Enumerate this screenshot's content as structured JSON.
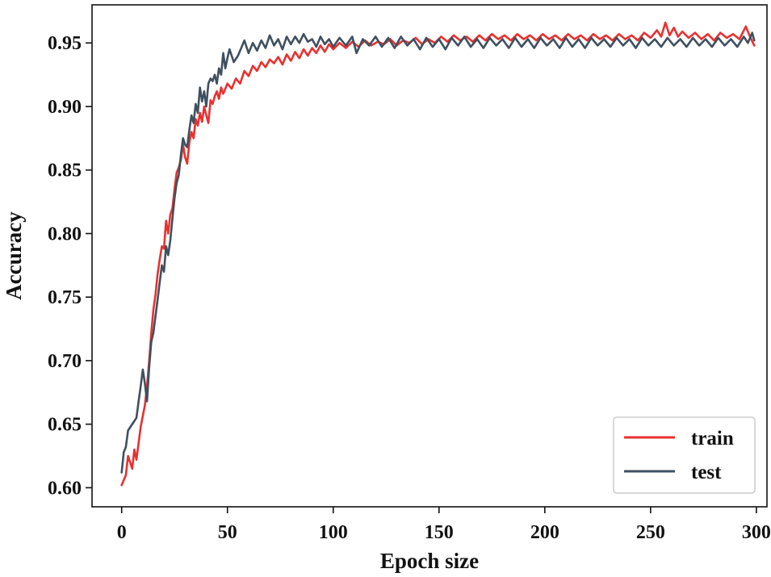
{
  "chart_data": {
    "type": "line",
    "title": "",
    "xlabel": "Epoch size",
    "ylabel": "Accuracy",
    "xlim": [
      -14,
      305
    ],
    "ylim": [
      0.585,
      0.98
    ],
    "xticks": [
      0,
      50,
      100,
      150,
      200,
      250,
      300
    ],
    "yticks": [
      0.6,
      0.65,
      0.7,
      0.75,
      0.8,
      0.85,
      0.9,
      0.95
    ],
    "grid": false,
    "legend_position": "bottom-right",
    "series": [
      {
        "name": "train",
        "color": "#e8312f",
        "points": [
          [
            0,
            0.602
          ],
          [
            2,
            0.61
          ],
          [
            3,
            0.625
          ],
          [
            5,
            0.615
          ],
          [
            6,
            0.63
          ],
          [
            7,
            0.622
          ],
          [
            9,
            0.648
          ],
          [
            11,
            0.665
          ],
          [
            12,
            0.68
          ],
          [
            13,
            0.7
          ],
          [
            14,
            0.722
          ],
          [
            15,
            0.74
          ],
          [
            16,
            0.752
          ],
          [
            17,
            0.768
          ],
          [
            18,
            0.78
          ],
          [
            19,
            0.79
          ],
          [
            20,
            0.788
          ],
          [
            21,
            0.81
          ],
          [
            22,
            0.8
          ],
          [
            23,
            0.815
          ],
          [
            24,
            0.82
          ],
          [
            25,
            0.835
          ],
          [
            26,
            0.848
          ],
          [
            27,
            0.852
          ],
          [
            28,
            0.858
          ],
          [
            29,
            0.87
          ],
          [
            30,
            0.86
          ],
          [
            31,
            0.855
          ],
          [
            32,
            0.872
          ],
          [
            33,
            0.88
          ],
          [
            34,
            0.875
          ],
          [
            35,
            0.89
          ],
          [
            36,
            0.885
          ],
          [
            37,
            0.895
          ],
          [
            38,
            0.888
          ],
          [
            39,
            0.9
          ],
          [
            40,
            0.893
          ],
          [
            41,
            0.887
          ],
          [
            42,
            0.905
          ],
          [
            43,
            0.902
          ],
          [
            44,
            0.908
          ],
          [
            45,
            0.912
          ],
          [
            46,
            0.906
          ],
          [
            47,
            0.915
          ],
          [
            48,
            0.91
          ],
          [
            50,
            0.918
          ],
          [
            52,
            0.914
          ],
          [
            54,
            0.922
          ],
          [
            56,
            0.918
          ],
          [
            58,
            0.928
          ],
          [
            60,
            0.924
          ],
          [
            62,
            0.932
          ],
          [
            64,
            0.928
          ],
          [
            66,
            0.935
          ],
          [
            68,
            0.931
          ],
          [
            70,
            0.937
          ],
          [
            72,
            0.934
          ],
          [
            74,
            0.939
          ],
          [
            76,
            0.933
          ],
          [
            78,
            0.941
          ],
          [
            80,
            0.936
          ],
          [
            82,
            0.943
          ],
          [
            84,
            0.938
          ],
          [
            86,
            0.945
          ],
          [
            88,
            0.94
          ],
          [
            90,
            0.946
          ],
          [
            92,
            0.942
          ],
          [
            94,
            0.948
          ],
          [
            96,
            0.943
          ],
          [
            98,
            0.949
          ],
          [
            100,
            0.945
          ],
          [
            103,
            0.95
          ],
          [
            106,
            0.946
          ],
          [
            109,
            0.951
          ],
          [
            112,
            0.947
          ],
          [
            115,
            0.952
          ],
          [
            118,
            0.948
          ],
          [
            121,
            0.951
          ],
          [
            124,
            0.949
          ],
          [
            127,
            0.953
          ],
          [
            130,
            0.948
          ],
          [
            133,
            0.952
          ],
          [
            136,
            0.95
          ],
          [
            139,
            0.954
          ],
          [
            142,
            0.949
          ],
          [
            145,
            0.953
          ],
          [
            148,
            0.95
          ],
          [
            151,
            0.955
          ],
          [
            154,
            0.951
          ],
          [
            157,
            0.956
          ],
          [
            160,
            0.952
          ],
          [
            163,
            0.955
          ],
          [
            166,
            0.951
          ],
          [
            169,
            0.956
          ],
          [
            172,
            0.952
          ],
          [
            175,
            0.957
          ],
          [
            178,
            0.953
          ],
          [
            181,
            0.956
          ],
          [
            184,
            0.952
          ],
          [
            187,
            0.957
          ],
          [
            190,
            0.953
          ],
          [
            193,
            0.956
          ],
          [
            196,
            0.952
          ],
          [
            199,
            0.957
          ],
          [
            202,
            0.953
          ],
          [
            205,
            0.956
          ],
          [
            208,
            0.952
          ],
          [
            211,
            0.957
          ],
          [
            214,
            0.953
          ],
          [
            217,
            0.956
          ],
          [
            220,
            0.952
          ],
          [
            223,
            0.957
          ],
          [
            226,
            0.953
          ],
          [
            229,
            0.956
          ],
          [
            232,
            0.952
          ],
          [
            235,
            0.957
          ],
          [
            238,
            0.953
          ],
          [
            241,
            0.956
          ],
          [
            244,
            0.952
          ],
          [
            247,
            0.958
          ],
          [
            250,
            0.954
          ],
          [
            253,
            0.96
          ],
          [
            255,
            0.955
          ],
          [
            257,
            0.966
          ],
          [
            259,
            0.956
          ],
          [
            261,
            0.962
          ],
          [
            263,
            0.955
          ],
          [
            265,
            0.959
          ],
          [
            268,
            0.954
          ],
          [
            271,
            0.958
          ],
          [
            274,
            0.953
          ],
          [
            277,
            0.957
          ],
          [
            280,
            0.952
          ],
          [
            283,
            0.958
          ],
          [
            286,
            0.954
          ],
          [
            289,
            0.957
          ],
          [
            292,
            0.953
          ],
          [
            295,
            0.963
          ],
          [
            297,
            0.955
          ],
          [
            299,
            0.948
          ]
        ]
      },
      {
        "name": "test",
        "color": "#3f5060",
        "points": [
          [
            0,
            0.612
          ],
          [
            1,
            0.628
          ],
          [
            2,
            0.632
          ],
          [
            3,
            0.645
          ],
          [
            5,
            0.65
          ],
          [
            7,
            0.655
          ],
          [
            8,
            0.668
          ],
          [
            9,
            0.68
          ],
          [
            10,
            0.693
          ],
          [
            11,
            0.682
          ],
          [
            12,
            0.668
          ],
          [
            13,
            0.695
          ],
          [
            14,
            0.715
          ],
          [
            15,
            0.722
          ],
          [
            16,
            0.735
          ],
          [
            17,
            0.748
          ],
          [
            18,
            0.762
          ],
          [
            19,
            0.775
          ],
          [
            20,
            0.77
          ],
          [
            21,
            0.79
          ],
          [
            22,
            0.783
          ],
          [
            23,
            0.795
          ],
          [
            24,
            0.812
          ],
          [
            25,
            0.828
          ],
          [
            26,
            0.84
          ],
          [
            27,
            0.846
          ],
          [
            28,
            0.862
          ],
          [
            29,
            0.875
          ],
          [
            30,
            0.87
          ],
          [
            31,
            0.868
          ],
          [
            32,
            0.882
          ],
          [
            33,
            0.893
          ],
          [
            34,
            0.887
          ],
          [
            35,
            0.902
          ],
          [
            36,
            0.895
          ],
          [
            37,
            0.915
          ],
          [
            38,
            0.904
          ],
          [
            39,
            0.912
          ],
          [
            40,
            0.9
          ],
          [
            41,
            0.918
          ],
          [
            42,
            0.922
          ],
          [
            43,
            0.92
          ],
          [
            44,
            0.925
          ],
          [
            45,
            0.918
          ],
          [
            46,
            0.93
          ],
          [
            47,
            0.925
          ],
          [
            48,
            0.942
          ],
          [
            49,
            0.93
          ],
          [
            50,
            0.938
          ],
          [
            51,
            0.945
          ],
          [
            53,
            0.935
          ],
          [
            55,
            0.94
          ],
          [
            57,
            0.948
          ],
          [
            58,
            0.952
          ],
          [
            60,
            0.942
          ],
          [
            62,
            0.95
          ],
          [
            64,
            0.944
          ],
          [
            66,
            0.952
          ],
          [
            68,
            0.946
          ],
          [
            70,
            0.956
          ],
          [
            72,
            0.948
          ],
          [
            74,
            0.953
          ],
          [
            76,
            0.945
          ],
          [
            78,
            0.955
          ],
          [
            80,
            0.949
          ],
          [
            82,
            0.955
          ],
          [
            84,
            0.95
          ],
          [
            86,
            0.957
          ],
          [
            88,
            0.951
          ],
          [
            90,
            0.953
          ],
          [
            92,
            0.947
          ],
          [
            94,
            0.955
          ],
          [
            96,
            0.949
          ],
          [
            98,
            0.953
          ],
          [
            100,
            0.947
          ],
          [
            103,
            0.954
          ],
          [
            106,
            0.948
          ],
          [
            109,
            0.955
          ],
          [
            111,
            0.942
          ],
          [
            114,
            0.953
          ],
          [
            117,
            0.948
          ],
          [
            120,
            0.955
          ],
          [
            123,
            0.947
          ],
          [
            126,
            0.954
          ],
          [
            129,
            0.946
          ],
          [
            132,
            0.955
          ],
          [
            135,
            0.948
          ],
          [
            138,
            0.953
          ],
          [
            141,
            0.945
          ],
          [
            144,
            0.954
          ],
          [
            147,
            0.947
          ],
          [
            150,
            0.953
          ],
          [
            153,
            0.945
          ],
          [
            156,
            0.954
          ],
          [
            159,
            0.948
          ],
          [
            162,
            0.955
          ],
          [
            165,
            0.947
          ],
          [
            168,
            0.953
          ],
          [
            171,
            0.946
          ],
          [
            174,
            0.954
          ],
          [
            177,
            0.948
          ],
          [
            180,
            0.953
          ],
          [
            183,
            0.946
          ],
          [
            186,
            0.954
          ],
          [
            189,
            0.947
          ],
          [
            192,
            0.953
          ],
          [
            195,
            0.946
          ],
          [
            198,
            0.954
          ],
          [
            201,
            0.948
          ],
          [
            204,
            0.953
          ],
          [
            207,
            0.946
          ],
          [
            210,
            0.954
          ],
          [
            213,
            0.947
          ],
          [
            216,
            0.953
          ],
          [
            219,
            0.946
          ],
          [
            222,
            0.954
          ],
          [
            225,
            0.948
          ],
          [
            228,
            0.953
          ],
          [
            231,
            0.947
          ],
          [
            234,
            0.954
          ],
          [
            237,
            0.948
          ],
          [
            240,
            0.953
          ],
          [
            243,
            0.946
          ],
          [
            246,
            0.954
          ],
          [
            249,
            0.948
          ],
          [
            252,
            0.953
          ],
          [
            255,
            0.947
          ],
          [
            258,
            0.954
          ],
          [
            261,
            0.948
          ],
          [
            264,
            0.953
          ],
          [
            267,
            0.947
          ],
          [
            270,
            0.954
          ],
          [
            273,
            0.948
          ],
          [
            276,
            0.953
          ],
          [
            279,
            0.947
          ],
          [
            282,
            0.954
          ],
          [
            285,
            0.948
          ],
          [
            288,
            0.953
          ],
          [
            291,
            0.947
          ],
          [
            294,
            0.955
          ],
          [
            296,
            0.95
          ],
          [
            298,
            0.958
          ],
          [
            299,
            0.952
          ]
        ]
      }
    ]
  }
}
